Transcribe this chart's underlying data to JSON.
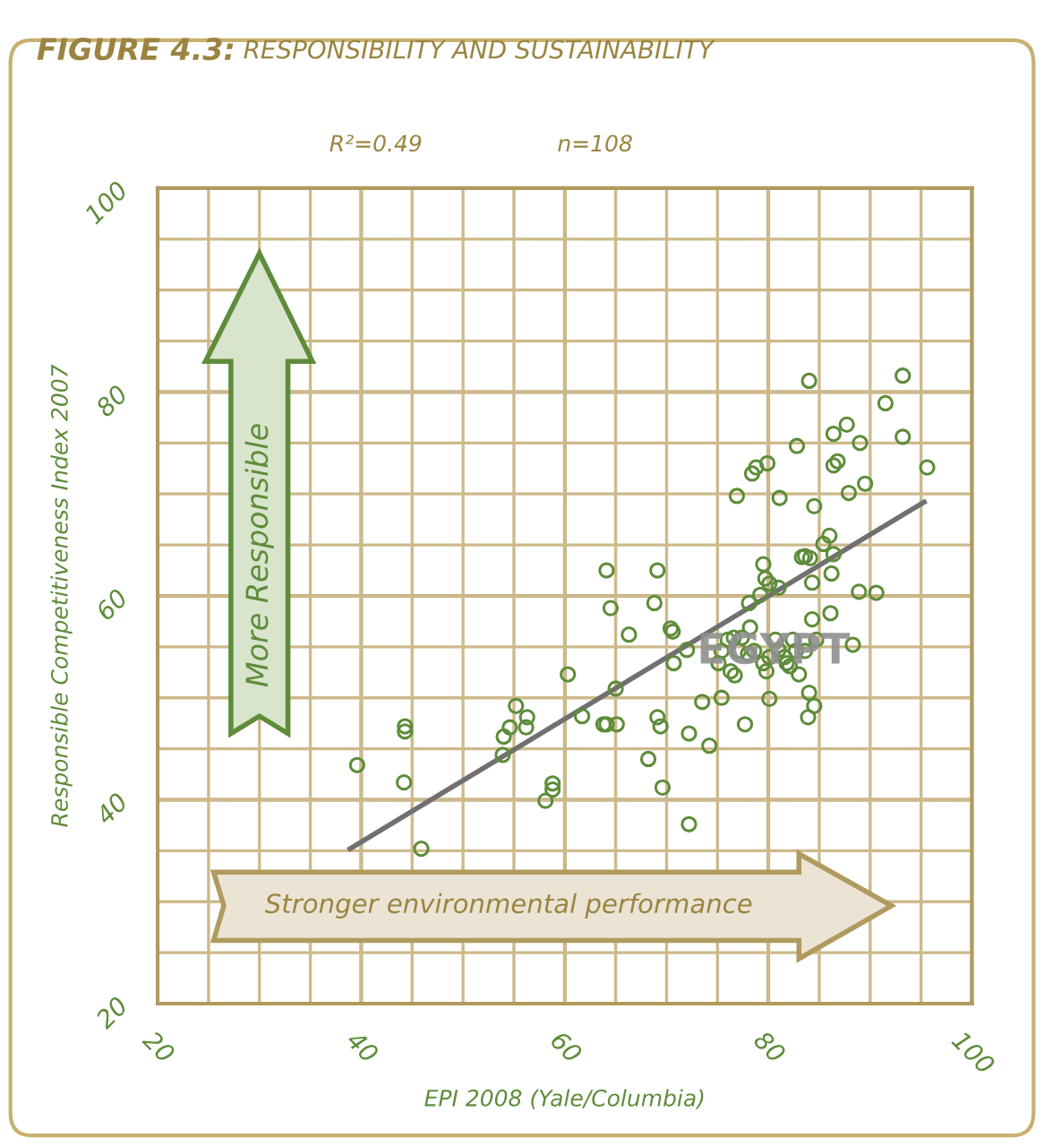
{
  "chart_data": {
    "type": "scatter",
    "title": "FIGURE 4.3: RESPONSIBILITY AND SUSTAINABILITY",
    "xlabel": "EPI 2008 (Yale/Columbia)",
    "ylabel": "Responsible Competitiveness Index 2007",
    "xlim": [
      20,
      100
    ],
    "ylim": [
      20,
      100
    ],
    "xticks": [
      20,
      {
        "value": 25,
        "label": null
      },
      {
        "value": 30,
        "label": null
      },
      {
        "value": 35,
        "label": null
      },
      40,
      {
        "value": 45,
        "label": null
      },
      {
        "value": 50,
        "label": null
      },
      {
        "value": 55,
        "label": null
      },
      60,
      {
        "value": 65,
        "label": null
      },
      {
        "value": 70,
        "label": null
      },
      {
        "value": 75,
        "label": null
      },
      80,
      {
        "value": 85,
        "label": null
      },
      {
        "value": 90,
        "label": null
      },
      {
        "value": 95,
        "label": null
      },
      100
    ],
    "yticks": [
      20,
      {
        "value": 25,
        "label": null
      },
      {
        "value": 30,
        "label": null
      },
      {
        "value": 35,
        "label": null
      },
      40,
      {
        "value": 45,
        "label": null
      },
      {
        "value": 50,
        "label": null
      },
      {
        "value": 55,
        "label": null
      },
      60,
      {
        "value": 65,
        "label": null
      },
      {
        "value": 70,
        "label": null
      },
      {
        "value": 75,
        "label": null
      },
      80,
      {
        "value": 85,
        "label": null
      },
      {
        "value": 90,
        "label": null
      },
      {
        "value": 95,
        "label": null
      },
      100
    ],
    "grid": true,
    "annotations": [
      "R²=0.49",
      "n=108",
      "More Responsible",
      "Stronger environmental performance",
      {
        "text": "EGYPT",
        "x": 80.5,
        "y": 54.5
      }
    ],
    "series": [
      {
        "color": "#5e8c3a",
        "marker": "circle",
        "x": [
          39.6,
          44.3,
          44.3,
          44.2,
          45.9,
          55.2,
          56.3,
          56.2,
          54.6,
          54.0,
          53.9,
          58.8,
          58.8,
          58.1,
          60.3,
          61.7,
          63.8,
          64.1,
          65.1,
          65.0,
          64.1,
          64.5,
          66.3,
          69.1,
          68.8,
          70.4,
          70.6,
          72.0,
          70.7,
          69.1,
          69.4,
          68.2,
          69.6,
          72.2,
          72.2,
          74.2,
          73.5,
          75.4,
          77.7,
          80.1,
          76.9,
          78.4,
          78.8,
          79.9,
          81.1,
          82.8,
          84.0,
          84.5,
          86.4,
          87.7,
          89.0,
          86.4,
          86.8,
          87.9,
          89.5,
          91.5,
          93.2,
          93.2,
          95.6,
          79.5,
          79.7,
          80.1,
          81.0,
          79.2,
          78.1,
          78.2,
          83.3,
          83.6,
          84.1,
          85.4,
          86.0,
          86.4,
          86.2,
          84.3,
          88.9,
          90.6,
          84.3,
          86.1,
          88.3,
          84.7,
          82.4,
          80.7,
          76.0,
          76.6,
          77.4,
          75.1,
          76.3,
          76.7,
          78.0,
          78.6,
          79.8,
          81.8,
          82.1,
          83.0,
          83.6,
          84.0,
          84.5,
          83.9,
          79.5,
          77.1,
          81.0,
          81.6,
          80.1,
          82.7,
          75.4
        ],
        "values": [
          43.4,
          47.2,
          46.7,
          41.7,
          35.2,
          49.2,
          48.1,
          47.1,
          47.1,
          46.2,
          44.4,
          41.6,
          41.0,
          39.9,
          52.3,
          48.2,
          47.4,
          47.4,
          47.4,
          50.9,
          62.5,
          58.8,
          56.2,
          62.5,
          59.3,
          56.8,
          56.5,
          54.7,
          53.4,
          48.1,
          47.2,
          44.0,
          41.2,
          37.6,
          46.5,
          45.3,
          49.6,
          50.0,
          47.4,
          49.9,
          69.8,
          72.0,
          72.6,
          73.0,
          69.6,
          74.7,
          81.1,
          68.8,
          75.9,
          76.8,
          75.0,
          72.8,
          73.2,
          70.1,
          71.0,
          78.9,
          81.6,
          75.6,
          72.6,
          63.1,
          61.7,
          61.2,
          60.8,
          60.1,
          59.3,
          56.9,
          63.8,
          63.9,
          63.7,
          65.1,
          65.9,
          64.1,
          62.2,
          61.3,
          60.4,
          60.3,
          57.7,
          58.3,
          55.2,
          55.7,
          55.7,
          55.7,
          55.7,
          55.9,
          55.9,
          53.4,
          52.6,
          52.2,
          54.3,
          54.6,
          52.6,
          53.4,
          53.1,
          52.3,
          54.6,
          50.5,
          49.2,
          48.1,
          53.4,
          54.6,
          54.7,
          54.0,
          54.0,
          54.6,
          54.6
        ]
      },
      {
        "type": "line",
        "color": "#707070",
        "x": [
          38.9,
          95.3
        ],
        "values": [
          35.2,
          69.2
        ]
      }
    ]
  }
}
